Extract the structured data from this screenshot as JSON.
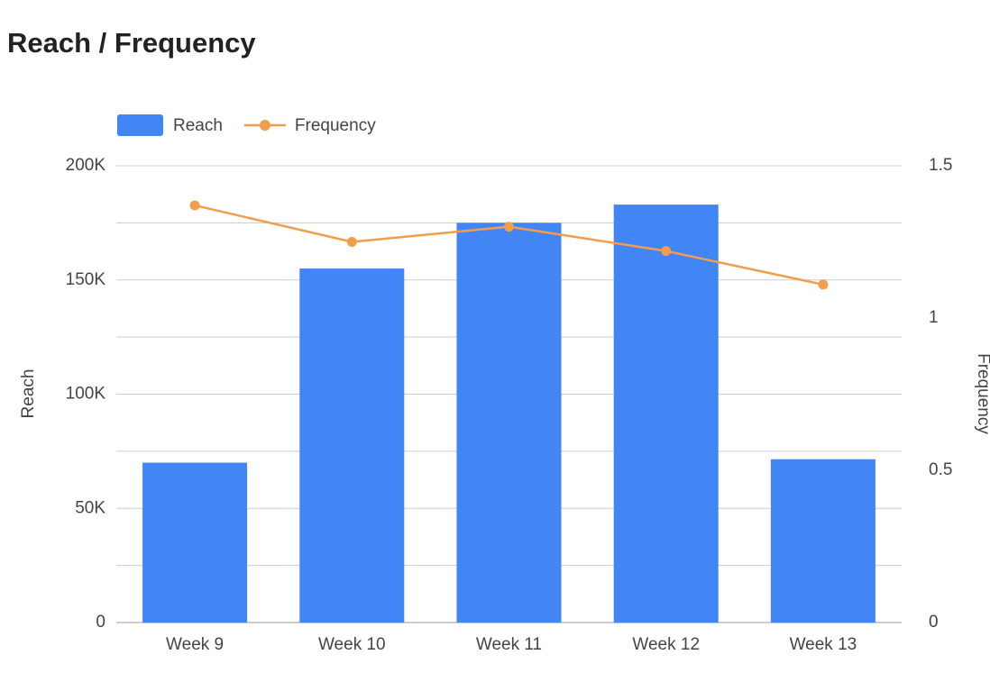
{
  "chart_data": {
    "type": "bar_line",
    "title": "Reach / Frequency",
    "categories": [
      "Week 9",
      "Week 10",
      "Week 11",
      "Week 12",
      "Week 13"
    ],
    "series": [
      {
        "name": "Reach",
        "type": "bar",
        "color": "#4285f4",
        "values": [
          70000,
          155000,
          175000,
          183000,
          71500
        ]
      },
      {
        "name": "Frequency",
        "type": "line",
        "axis": "y2",
        "color": "#f29d4b",
        "values": [
          1.37,
          1.25,
          1.3,
          1.22,
          1.11
        ]
      }
    ],
    "y_label": "Reach",
    "y2_label": "Frequency",
    "ylim": [
      0,
      200000
    ],
    "yticks": [
      0,
      {
        "value": 50000,
        "label": "50K"
      },
      {
        "value": 100000,
        "label": "100K"
      },
      {
        "value": 150000,
        "label": "150K"
      },
      {
        "value": 200000,
        "label": "200K"
      }
    ],
    "yminor": [
      25000,
      75000,
      125000,
      175000
    ],
    "y2lim": [
      0,
      1.5
    ],
    "y2ticks": [
      0,
      0.5,
      1,
      1.5
    ],
    "grid": true,
    "legend": "top-left"
  }
}
